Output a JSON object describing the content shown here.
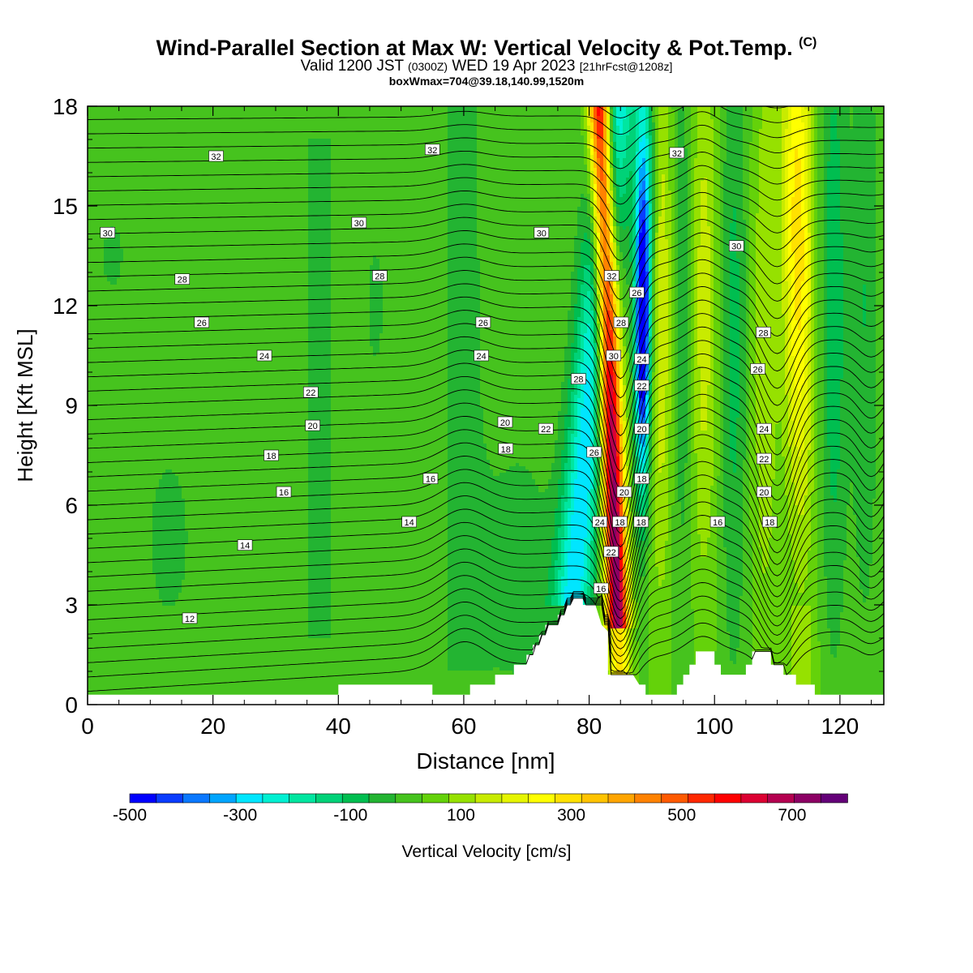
{
  "header": {
    "title": "Wind-Parallel Section at Max W: Vertical Velocity & Pot.Temp.",
    "title_mark": "(C)",
    "valid_prefix": "Valid 1200 JST",
    "valid_utc": "(0300Z)",
    "valid_suffix": "WED 19 Apr 2023",
    "forecast": "[21hrFcst@1208z]",
    "box_info": "boxWmax=704@39.18,140.99,1520m"
  },
  "chart_data": {
    "type": "heatmap",
    "xlabel": "Distance [nm]",
    "ylabel": "Height [Kft MSL]",
    "xlim": [
      0,
      127
    ],
    "ylim": [
      0,
      18
    ],
    "xticks": [
      "0",
      "20",
      "40",
      "60",
      "80",
      "100",
      "120"
    ],
    "yticks": [
      "0",
      "3",
      "6",
      "9",
      "12",
      "15",
      "18"
    ],
    "colorbar": {
      "label": "Vertical Velocity [cm/s]",
      "tick_labels": [
        "-500",
        "-300",
        "-100",
        "100",
        "300",
        "500",
        "700"
      ],
      "levels_from": -500,
      "levels_to": 800,
      "level_step": 50,
      "colors": [
        "#0000ff",
        "#0a3cff",
        "#0a78ff",
        "#00a5ff",
        "#00e6ff",
        "#00f0d2",
        "#00e6a0",
        "#00d278",
        "#00be50",
        "#23b432",
        "#46c31e",
        "#64d20a",
        "#96e100",
        "#c8eb00",
        "#e6f500",
        "#ffff00",
        "#ffe100",
        "#ffc300",
        "#ffa500",
        "#ff8200",
        "#ff5a00",
        "#ff2800",
        "#ff0000",
        "#dc0032",
        "#b40050",
        "#8c0064",
        "#640078"
      ]
    },
    "terrain_top_kft": [
      [
        0,
        0.3
      ],
      [
        40,
        0.3
      ],
      [
        40,
        0.6
      ],
      [
        55,
        0.6
      ],
      [
        55,
        0.3
      ],
      [
        61,
        0.3
      ],
      [
        61,
        0.6
      ],
      [
        65,
        0.6
      ],
      [
        65,
        0.9
      ],
      [
        68,
        0.9
      ],
      [
        68,
        1.2
      ],
      [
        70,
        1.2
      ],
      [
        70,
        1.5
      ],
      [
        71,
        1.5
      ],
      [
        71,
        1.8
      ],
      [
        72,
        1.8
      ],
      [
        72,
        2.1
      ],
      [
        73,
        2.1
      ],
      [
        73,
        2.4
      ],
      [
        75,
        2.4
      ],
      [
        75,
        2.7
      ],
      [
        76,
        2.7
      ],
      [
        76,
        3.0
      ],
      [
        77,
        3.0
      ],
      [
        77,
        3.2
      ],
      [
        79,
        3.2
      ],
      [
        79,
        3.0
      ],
      [
        81,
        3.0
      ],
      [
        82,
        2.4
      ],
      [
        83,
        2.2
      ],
      [
        83,
        0.9
      ],
      [
        87,
        0.9
      ],
      [
        88,
        0.6
      ],
      [
        89,
        0.6
      ],
      [
        89,
        0.3
      ],
      [
        94,
        0.3
      ],
      [
        94,
        0.6
      ],
      [
        95,
        0.6
      ],
      [
        95,
        0.9
      ],
      [
        96,
        0.9
      ],
      [
        96,
        1.2
      ],
      [
        97,
        1.2
      ],
      [
        97,
        1.6
      ],
      [
        100,
        1.6
      ],
      [
        100,
        1.2
      ],
      [
        101,
        1.2
      ],
      [
        101,
        0.9
      ],
      [
        105,
        0.9
      ],
      [
        105,
        1.2
      ],
      [
        106,
        1.2
      ],
      [
        106,
        1.6
      ],
      [
        109,
        1.6
      ],
      [
        109,
        1.2
      ],
      [
        111,
        1.2
      ],
      [
        111,
        0.9
      ],
      [
        113,
        0.9
      ],
      [
        113,
        0.6
      ],
      [
        116,
        0.6
      ],
      [
        116,
        0.3
      ],
      [
        127,
        0.3
      ]
    ],
    "potential_temperature_labels": [
      {
        "x": 20.5,
        "y": 16.5,
        "text": "32"
      },
      {
        "x": 55,
        "y": 16.7,
        "text": "32"
      },
      {
        "x": 94,
        "y": 16.6,
        "text": "32"
      },
      {
        "x": 3.2,
        "y": 14.2,
        "text": "30"
      },
      {
        "x": 43.3,
        "y": 14.5,
        "text": "30"
      },
      {
        "x": 72.4,
        "y": 14.2,
        "text": "30"
      },
      {
        "x": 103.5,
        "y": 13.8,
        "text": "30"
      },
      {
        "x": 15.1,
        "y": 12.8,
        "text": "28"
      },
      {
        "x": 46.6,
        "y": 12.9,
        "text": "28"
      },
      {
        "x": 83.6,
        "y": 12.9,
        "text": "32"
      },
      {
        "x": 87.6,
        "y": 12.4,
        "text": "26"
      },
      {
        "x": 18.2,
        "y": 11.5,
        "text": "26"
      },
      {
        "x": 63.1,
        "y": 11.5,
        "text": "26"
      },
      {
        "x": 85.1,
        "y": 11.5,
        "text": "28"
      },
      {
        "x": 107.8,
        "y": 11.2,
        "text": "28"
      },
      {
        "x": 28.2,
        "y": 10.5,
        "text": "24"
      },
      {
        "x": 62.8,
        "y": 10.5,
        "text": "24"
      },
      {
        "x": 83.9,
        "y": 10.5,
        "text": "30"
      },
      {
        "x": 88.4,
        "y": 10.4,
        "text": "24"
      },
      {
        "x": 106.9,
        "y": 10.1,
        "text": "26"
      },
      {
        "x": 78.3,
        "y": 9.8,
        "text": "28"
      },
      {
        "x": 88.4,
        "y": 9.6,
        "text": "22"
      },
      {
        "x": 35.6,
        "y": 9.4,
        "text": "22"
      },
      {
        "x": 35.9,
        "y": 8.4,
        "text": "20"
      },
      {
        "x": 66.6,
        "y": 8.5,
        "text": "20"
      },
      {
        "x": 73.1,
        "y": 8.3,
        "text": "22"
      },
      {
        "x": 88.4,
        "y": 8.3,
        "text": "20"
      },
      {
        "x": 107.9,
        "y": 8.3,
        "text": "24"
      },
      {
        "x": 66.7,
        "y": 7.7,
        "text": "18"
      },
      {
        "x": 80.8,
        "y": 7.6,
        "text": "26"
      },
      {
        "x": 29.3,
        "y": 7.5,
        "text": "18"
      },
      {
        "x": 107.9,
        "y": 7.4,
        "text": "22"
      },
      {
        "x": 54.7,
        "y": 6.8,
        "text": "16"
      },
      {
        "x": 88.4,
        "y": 6.8,
        "text": "18"
      },
      {
        "x": 31.3,
        "y": 6.4,
        "text": "16"
      },
      {
        "x": 85.6,
        "y": 6.4,
        "text": "20"
      },
      {
        "x": 107.9,
        "y": 6.4,
        "text": "20"
      },
      {
        "x": 51.3,
        "y": 5.5,
        "text": "14"
      },
      {
        "x": 81.7,
        "y": 5.5,
        "text": "24"
      },
      {
        "x": 84.9,
        "y": 5.5,
        "text": "18"
      },
      {
        "x": 88.3,
        "y": 5.5,
        "text": "18"
      },
      {
        "x": 100.5,
        "y": 5.5,
        "text": "16"
      },
      {
        "x": 108.8,
        "y": 5.5,
        "text": "18"
      },
      {
        "x": 25.1,
        "y": 4.8,
        "text": "14"
      },
      {
        "x": 83.5,
        "y": 4.6,
        "text": "22"
      },
      {
        "x": 81.9,
        "y": 3.5,
        "text": "16"
      },
      {
        "x": 16.3,
        "y": 2.6,
        "text": "12"
      }
    ],
    "grid": false,
    "legend": "bottom"
  }
}
